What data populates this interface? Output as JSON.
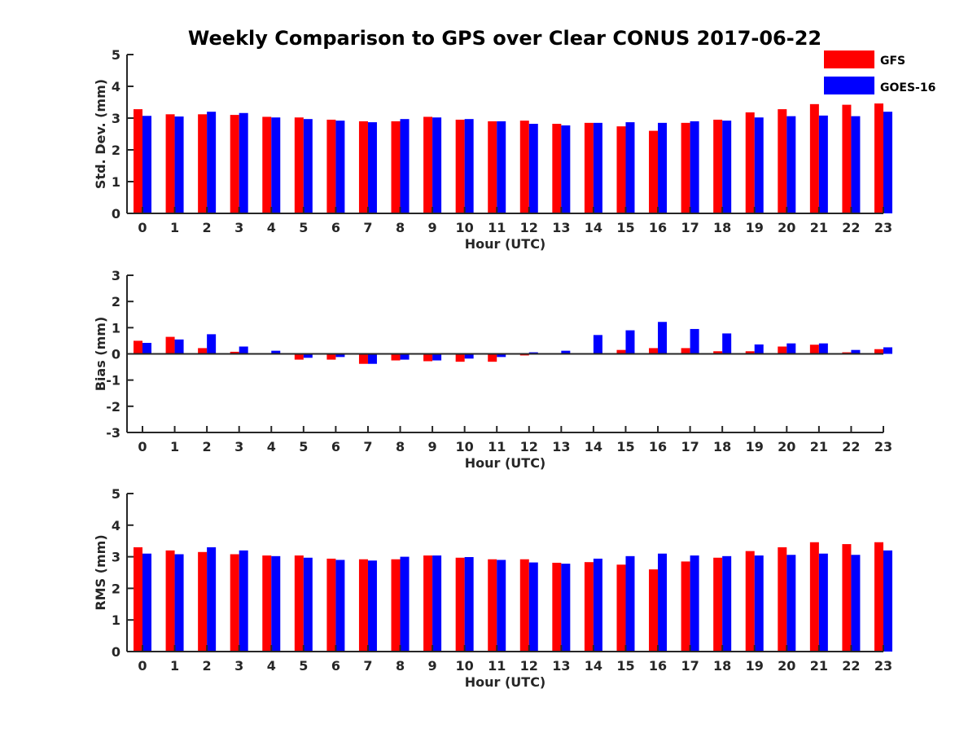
{
  "title": "Weekly Comparison to GPS over Clear CONUS 2017-06-22",
  "legend": [
    {
      "label": "GFS",
      "color": "#ff0000"
    },
    {
      "label": "GOES-16",
      "color": "#0000ff"
    }
  ],
  "chart_data": [
    {
      "type": "bar",
      "ylabel": "Std. Dev. (mm)",
      "xlabel": "Hour (UTC)",
      "ylim": [
        0,
        5
      ],
      "yticks": [
        0,
        1,
        2,
        3,
        4,
        5
      ],
      "categories": [
        "0",
        "1",
        "2",
        "3",
        "4",
        "5",
        "6",
        "7",
        "8",
        "9",
        "10",
        "11",
        "12",
        "13",
        "14",
        "15",
        "16",
        "17",
        "18",
        "19",
        "20",
        "21",
        "22",
        "23"
      ],
      "series": [
        {
          "name": "GFS",
          "values": [
            3.28,
            3.12,
            3.12,
            3.1,
            3.04,
            3.02,
            2.95,
            2.9,
            2.9,
            3.04,
            2.95,
            2.9,
            2.92,
            2.82,
            2.85,
            2.74,
            2.6,
            2.85,
            2.95,
            3.18,
            3.28,
            3.44,
            3.42,
            3.46
          ]
        },
        {
          "name": "GOES-16",
          "values": [
            3.07,
            3.05,
            3.2,
            3.16,
            3.02,
            2.97,
            2.92,
            2.87,
            2.97,
            3.02,
            2.97,
            2.9,
            2.82,
            2.77,
            2.85,
            2.87,
            2.85,
            2.9,
            2.92,
            3.02,
            3.06,
            3.08,
            3.06,
            3.2
          ]
        }
      ]
    },
    {
      "type": "bar",
      "ylabel": "Bias (mm)",
      "xlabel": "Hour (UTC)",
      "ylim": [
        -3,
        3
      ],
      "yticks": [
        -3,
        -2,
        -1,
        0,
        1,
        2,
        3
      ],
      "categories": [
        "0",
        "1",
        "2",
        "3",
        "4",
        "5",
        "6",
        "7",
        "8",
        "9",
        "10",
        "11",
        "12",
        "13",
        "14",
        "15",
        "16",
        "17",
        "18",
        "19",
        "20",
        "21",
        "22",
        "23"
      ],
      "series": [
        {
          "name": "GFS",
          "values": [
            0.5,
            0.65,
            0.22,
            0.08,
            0.0,
            -0.22,
            -0.22,
            -0.38,
            -0.25,
            -0.28,
            -0.3,
            -0.3,
            -0.06,
            0.0,
            0.02,
            0.15,
            0.22,
            0.22,
            0.1,
            0.1,
            0.28,
            0.35,
            0.06,
            0.18
          ]
        },
        {
          "name": "GOES-16",
          "values": [
            0.42,
            0.55,
            0.75,
            0.28,
            0.12,
            -0.15,
            -0.12,
            -0.38,
            -0.22,
            -0.25,
            -0.18,
            -0.12,
            0.06,
            0.12,
            0.72,
            0.9,
            1.22,
            0.95,
            0.78,
            0.36,
            0.4,
            0.4,
            0.15,
            0.25
          ]
        }
      ]
    },
    {
      "type": "bar",
      "ylabel": "RMS (mm)",
      "xlabel": "Hour (UTC)",
      "ylim": [
        0,
        5
      ],
      "yticks": [
        0,
        1,
        2,
        3,
        4,
        5
      ],
      "categories": [
        "0",
        "1",
        "2",
        "3",
        "4",
        "5",
        "6",
        "7",
        "8",
        "9",
        "10",
        "11",
        "12",
        "13",
        "14",
        "15",
        "16",
        "17",
        "18",
        "19",
        "20",
        "21",
        "22",
        "23"
      ],
      "series": [
        {
          "name": "GFS",
          "values": [
            3.3,
            3.2,
            3.15,
            3.08,
            3.04,
            3.04,
            2.94,
            2.92,
            2.92,
            3.04,
            2.97,
            2.92,
            2.92,
            2.81,
            2.83,
            2.75,
            2.6,
            2.85,
            2.97,
            3.18,
            3.3,
            3.46,
            3.4,
            3.46
          ]
        },
        {
          "name": "GOES-16",
          "values": [
            3.1,
            3.08,
            3.3,
            3.2,
            3.02,
            2.97,
            2.9,
            2.88,
            3.0,
            3.04,
            2.99,
            2.9,
            2.82,
            2.78,
            2.94,
            3.02,
            3.1,
            3.04,
            3.02,
            3.04,
            3.06,
            3.1,
            3.06,
            3.2
          ]
        }
      ]
    }
  ]
}
